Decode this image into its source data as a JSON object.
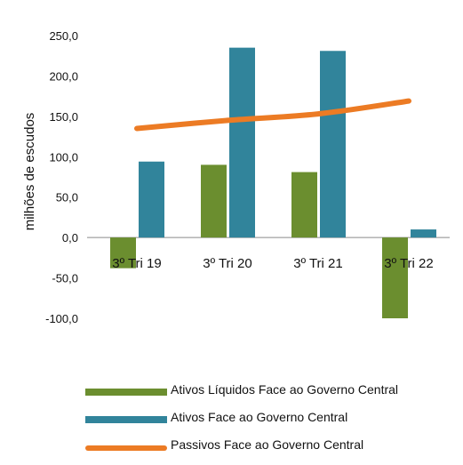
{
  "chart_data": {
    "type": "bar",
    "categories": [
      "3º Tri 19",
      "3º Tri 20",
      "3º Tri 21",
      "3º Tri 22"
    ],
    "ylabel": "milhões de escudos",
    "ylim": [
      -100,
      250
    ],
    "yticks": [
      250,
      200,
      150,
      100,
      50,
      0,
      -50,
      -100
    ],
    "ytick_labels": [
      "250,0",
      "200,0",
      "150,0",
      "100,0",
      "50,0",
      "0,0",
      "-50,0",
      "-100,0"
    ],
    "grid": false,
    "legend_position": "bottom",
    "series": [
      {
        "name": "Ativos Líquidos Face ao Governo Central",
        "type": "bar",
        "color": "#6b8e2f",
        "values": [
          -38,
          90,
          81,
          -100
        ]
      },
      {
        "name": "Ativos Face ao Governo Central",
        "type": "bar",
        "color": "#31849b",
        "values": [
          94,
          235,
          231,
          10
        ]
      },
      {
        "name": "Passivos Face ao Governo Central",
        "type": "line",
        "color": "#ec7b24",
        "values": [
          135,
          145,
          153,
          169
        ]
      }
    ]
  }
}
